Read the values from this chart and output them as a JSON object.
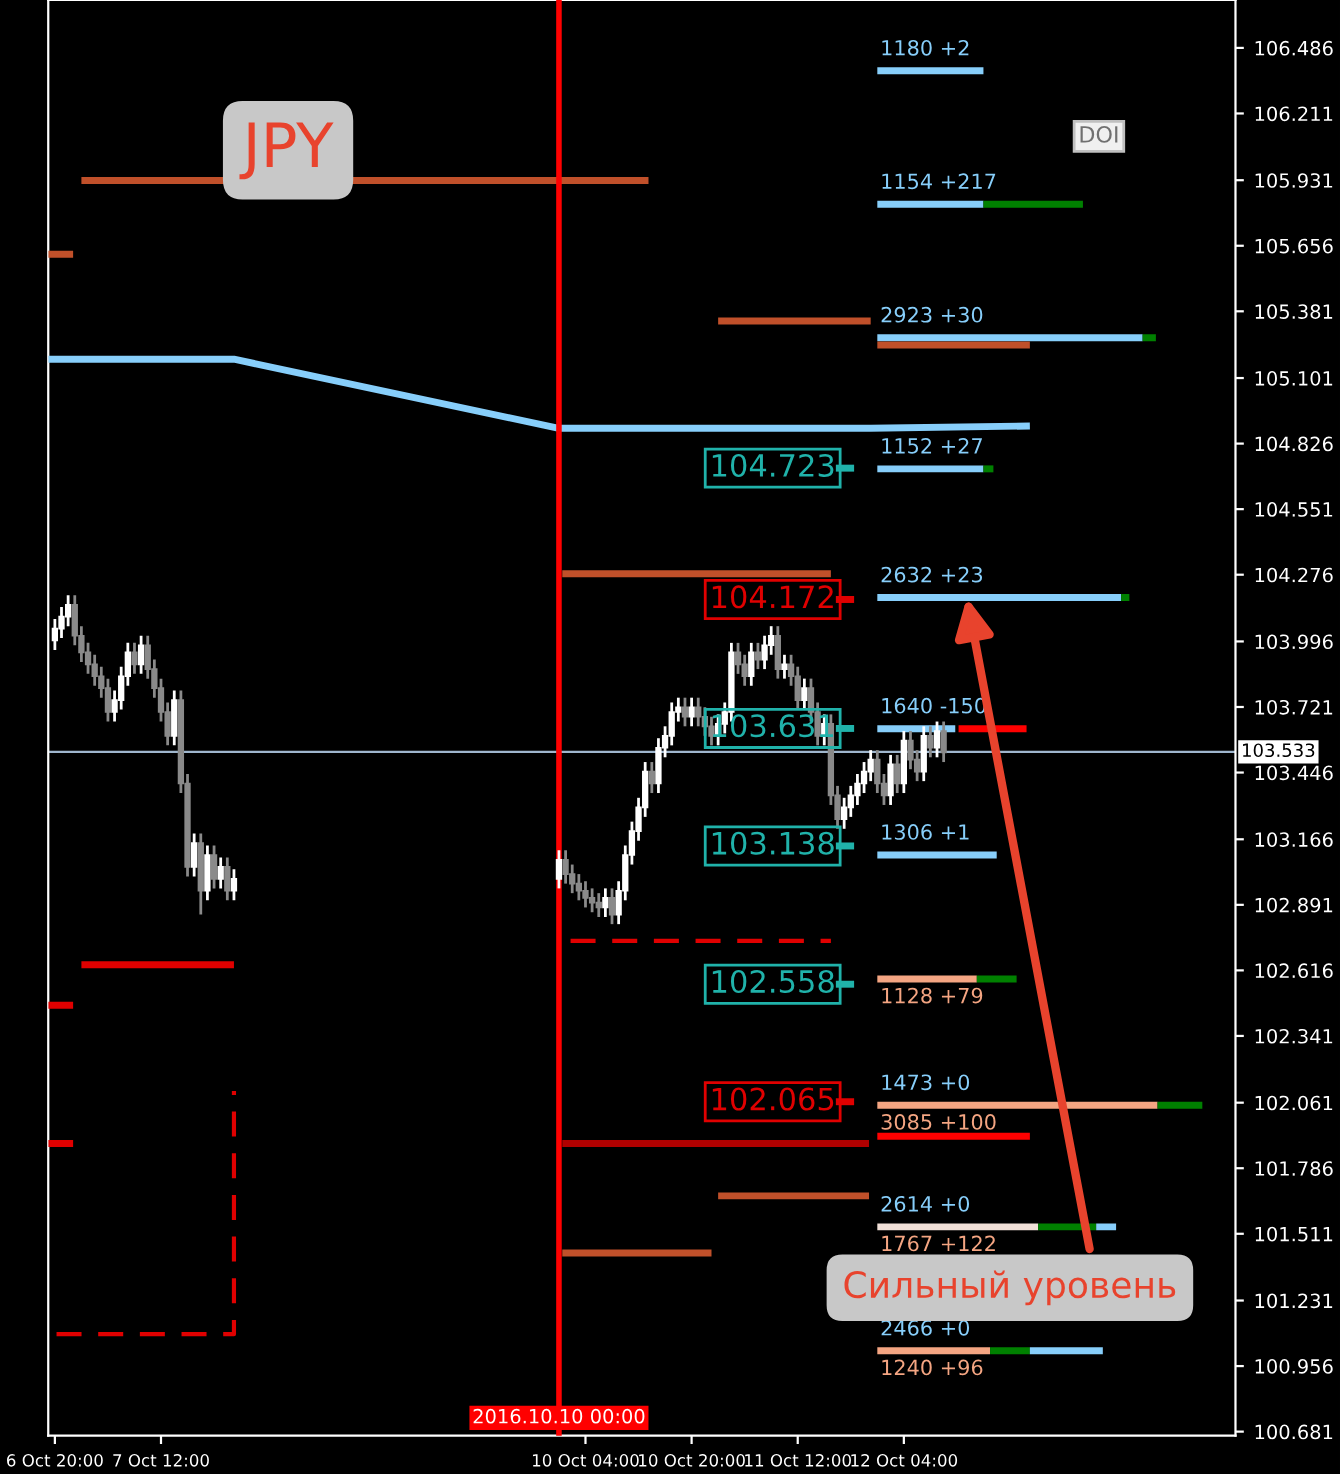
{
  "chart_data": {
    "type": "candlestick",
    "title": "JPY",
    "x": [
      "2016-10-06T20:00",
      "2016-10-06T21:00",
      "2016-10-06T22:00",
      "2016-10-06T23:00",
      "2016-10-07T00:00",
      "2016-10-07T01:00",
      "2016-10-07T02:00",
      "2016-10-07T03:00",
      "2016-10-07T04:00",
      "2016-10-07T05:00",
      "2016-10-07T06:00",
      "2016-10-07T07:00",
      "2016-10-07T08:00",
      "2016-10-07T09:00",
      "2016-10-07T10:00",
      "2016-10-07T11:00",
      "2016-10-07T12:00",
      "2016-10-07T13:00",
      "2016-10-07T14:00",
      "2016-10-07T15:00",
      "2016-10-07T16:00",
      "2016-10-07T17:00",
      "2016-10-07T18:00",
      "2016-10-07T19:00",
      "2016-10-07T20:00",
      "2016-10-07T21:00",
      "2016-10-07T22:00",
      "2016-10-07T23:00",
      "2016-10-10T00:00",
      "2016-10-10T01:00",
      "2016-10-10T02:00",
      "2016-10-10T03:00",
      "2016-10-10T04:00",
      "2016-10-10T05:00",
      "2016-10-10T06:00",
      "2016-10-10T07:00",
      "2016-10-10T08:00",
      "2016-10-10T09:00",
      "2016-10-10T10:00",
      "2016-10-10T11:00",
      "2016-10-10T12:00",
      "2016-10-10T13:00",
      "2016-10-10T14:00",
      "2016-10-10T15:00",
      "2016-10-10T16:00",
      "2016-10-10T17:00",
      "2016-10-10T18:00",
      "2016-10-10T19:00",
      "2016-10-10T20:00",
      "2016-10-10T21:00",
      "2016-10-10T22:00",
      "2016-10-10T23:00",
      "2016-10-11T00:00",
      "2016-10-11T01:00",
      "2016-10-11T02:00",
      "2016-10-11T03:00",
      "2016-10-11T04:00",
      "2016-10-11T05:00",
      "2016-10-11T06:00",
      "2016-10-11T07:00",
      "2016-10-11T08:00",
      "2016-10-11T09:00",
      "2016-10-11T10:00",
      "2016-10-11T11:00",
      "2016-10-11T12:00",
      "2016-10-11T13:00",
      "2016-10-11T14:00",
      "2016-10-11T15:00",
      "2016-10-11T16:00",
      "2016-10-11T17:00",
      "2016-10-11T18:00",
      "2016-10-11T19:00",
      "2016-10-11T20:00",
      "2016-10-11T21:00",
      "2016-10-11T22:00",
      "2016-10-11T23:00",
      "2016-10-12T00:00",
      "2016-10-12T01:00",
      "2016-10-12T02:00",
      "2016-10-12T03:00",
      "2016-10-12T04:00",
      "2016-10-12T05:00",
      "2016-10-12T06:00",
      "2016-10-12T07:00",
      "2016-10-12T08:00",
      "2016-10-12T09:00",
      "2016-10-12T10:00"
    ],
    "ohlc": [
      [
        104.0,
        104.09,
        103.96,
        104.05
      ],
      [
        104.05,
        104.14,
        104.01,
        104.1
      ],
      [
        104.1,
        104.19,
        104.06,
        104.15
      ],
      [
        104.15,
        104.19,
        103.98,
        104.02
      ],
      [
        104.02,
        104.06,
        103.91,
        103.95
      ],
      [
        103.95,
        103.99,
        103.86,
        103.9
      ],
      [
        103.9,
        103.94,
        103.81,
        103.85
      ],
      [
        103.85,
        103.89,
        103.76,
        103.8
      ],
      [
        103.8,
        103.84,
        103.66,
        103.7
      ],
      [
        103.7,
        103.79,
        103.66,
        103.75
      ],
      [
        103.75,
        103.89,
        103.71,
        103.85
      ],
      [
        103.85,
        103.99,
        103.81,
        103.95
      ],
      [
        103.95,
        103.99,
        103.86,
        103.9
      ],
      [
        103.9,
        104.02,
        103.86,
        103.98
      ],
      [
        103.98,
        104.02,
        103.84,
        103.88
      ],
      [
        103.88,
        103.92,
        103.76,
        103.8
      ],
      [
        103.8,
        103.84,
        103.66,
        103.7
      ],
      [
        103.7,
        103.74,
        103.56,
        103.6
      ],
      [
        103.6,
        103.79,
        103.56,
        103.75
      ],
      [
        103.75,
        103.79,
        103.36,
        103.4
      ],
      [
        103.4,
        103.44,
        103.01,
        103.05
      ],
      [
        103.05,
        103.19,
        103.01,
        103.15
      ],
      [
        103.15,
        103.19,
        102.85,
        102.95
      ],
      [
        102.95,
        103.14,
        102.91,
        103.1
      ],
      [
        103.1,
        103.14,
        102.96,
        103.0
      ],
      [
        103.0,
        103.09,
        102.96,
        103.05
      ],
      [
        103.05,
        103.09,
        102.91,
        102.95
      ],
      [
        102.95,
        103.04,
        102.91,
        103.0
      ],
      [
        103.0,
        103.12,
        102.96,
        103.08
      ],
      [
        103.08,
        103.12,
        102.98,
        103.02
      ],
      [
        103.02,
        103.06,
        102.94,
        102.98
      ],
      [
        102.98,
        103.02,
        102.91,
        102.95
      ],
      [
        102.95,
        102.99,
        102.88,
        102.92
      ],
      [
        102.92,
        102.96,
        102.86,
        102.9
      ],
      [
        102.9,
        102.94,
        102.84,
        102.88
      ],
      [
        102.88,
        102.96,
        102.84,
        102.92
      ],
      [
        102.92,
        102.96,
        102.81,
        102.85
      ],
      [
        102.85,
        102.99,
        102.81,
        102.95
      ],
      [
        102.95,
        103.14,
        102.91,
        103.1
      ],
      [
        103.1,
        103.24,
        103.06,
        103.2
      ],
      [
        103.2,
        103.34,
        103.16,
        103.3
      ],
      [
        103.3,
        103.49,
        103.26,
        103.45
      ],
      [
        103.45,
        103.49,
        103.36,
        103.4
      ],
      [
        103.4,
        103.59,
        103.36,
        103.55
      ],
      [
        103.55,
        103.64,
        103.51,
        103.6
      ],
      [
        103.6,
        103.74,
        103.56,
        103.7
      ],
      [
        103.7,
        103.76,
        103.66,
        103.72
      ],
      [
        103.72,
        103.76,
        103.64,
        103.68
      ],
      [
        103.68,
        103.76,
        103.64,
        103.72
      ],
      [
        103.72,
        103.76,
        103.64,
        103.68
      ],
      [
        103.68,
        103.72,
        103.6,
        103.64
      ],
      [
        103.64,
        103.68,
        103.56,
        103.6
      ],
      [
        103.6,
        103.69,
        103.56,
        103.65
      ],
      [
        103.65,
        103.74,
        103.61,
        103.7
      ],
      [
        103.7,
        103.99,
        103.66,
        103.95
      ],
      [
        103.95,
        103.99,
        103.86,
        103.9
      ],
      [
        103.9,
        103.94,
        103.81,
        103.85
      ],
      [
        103.85,
        103.99,
        103.81,
        103.95
      ],
      [
        103.95,
        103.99,
        103.88,
        103.92
      ],
      [
        103.92,
        104.02,
        103.88,
        103.98
      ],
      [
        103.98,
        104.06,
        103.94,
        104.02
      ],
      [
        104.02,
        104.06,
        103.84,
        103.88
      ],
      [
        103.88,
        103.94,
        103.84,
        103.9
      ],
      [
        103.9,
        103.94,
        103.81,
        103.85
      ],
      [
        103.85,
        103.89,
        103.71,
        103.75
      ],
      [
        103.75,
        103.84,
        103.71,
        103.8
      ],
      [
        103.8,
        103.84,
        103.66,
        103.7
      ],
      [
        103.7,
        103.74,
        103.56,
        103.6
      ],
      [
        103.6,
        103.69,
        103.56,
        103.65
      ],
      [
        103.65,
        103.69,
        103.31,
        103.35
      ],
      [
        103.35,
        103.39,
        103.21,
        103.25
      ],
      [
        103.25,
        103.34,
        103.21,
        103.3
      ],
      [
        103.3,
        103.39,
        103.26,
        103.35
      ],
      [
        103.35,
        103.44,
        103.31,
        103.4
      ],
      [
        103.4,
        103.49,
        103.36,
        103.45
      ],
      [
        103.45,
        103.54,
        103.41,
        103.5
      ],
      [
        103.5,
        103.54,
        103.36,
        103.4
      ],
      [
        103.4,
        103.44,
        103.31,
        103.35
      ],
      [
        103.35,
        103.52,
        103.31,
        103.48
      ],
      [
        103.48,
        103.52,
        103.36,
        103.4
      ],
      [
        103.4,
        103.62,
        103.36,
        103.58
      ],
      [
        103.58,
        103.62,
        103.46,
        103.5
      ],
      [
        103.5,
        103.54,
        103.41,
        103.45
      ],
      [
        103.45,
        103.64,
        103.41,
        103.6
      ],
      [
        103.6,
        103.64,
        103.51,
        103.55
      ],
      [
        103.55,
        103.66,
        103.51,
        103.62
      ],
      [
        103.62,
        103.66,
        103.49,
        103.53
      ]
    ],
    "series": [
      {
        "type": "line",
        "color": "#87cefa",
        "x": [
          "2016-10-06T19:00",
          "2016-10-07T23:00",
          "2016-10-10T00:00",
          "2016-10-11T23:00",
          "2016-10-12T23:00"
        ],
        "values": [
          105.18,
          105.18,
          104.89,
          104.89,
          104.9
        ]
      },
      {
        "type": "line",
        "color": "#87cefa",
        "x": [
          "2016-10-12T00:00",
          "2016-10-12T16:00"
        ],
        "values": [
          106.39,
          106.39
        ]
      },
      {
        "type": "line",
        "color": "#87cefa",
        "x": [
          "2016-10-12T00:00",
          "2016-10-12T16:00"
        ],
        "values": [
          105.83,
          105.83
        ]
      },
      {
        "type": "line",
        "color": "#008000",
        "x": [
          "2016-10-12T16:00",
          "2016-10-13T07:00"
        ],
        "values": [
          105.83,
          105.83
        ]
      },
      {
        "type": "line",
        "color": "#87cefa",
        "x": [
          "2016-10-12T00:00",
          "2016-10-13T16:00"
        ],
        "values": [
          105.27,
          105.27
        ]
      },
      {
        "type": "line",
        "color": "#008000",
        "x": [
          "2016-10-13T16:00",
          "2016-10-13T18:00"
        ],
        "values": [
          105.27,
          105.27
        ]
      },
      {
        "type": "line",
        "color": "#c0502a",
        "x": [
          "2016-10-12T00:00",
          "2016-10-12T23:00"
        ],
        "values": [
          105.24,
          105.24
        ]
      },
      {
        "type": "line",
        "color": "#c0502a",
        "x": [
          "2016-10-11T00:00",
          "2016-10-11T23:00"
        ],
        "values": [
          105.34,
          105.34
        ]
      },
      {
        "type": "line",
        "color": "#87cefa",
        "x": [
          "2016-10-12T00:00",
          "2016-10-12T16:00"
        ],
        "values": [
          104.72,
          104.72
        ]
      },
      {
        "type": "line",
        "color": "#008000",
        "x": [
          "2016-10-12T16:00",
          "2016-10-12T17:30"
        ],
        "values": [
          104.72,
          104.72
        ]
      },
      {
        "type": "line",
        "color": "#87cefa",
        "x": [
          "2016-10-12T00:00",
          "2016-10-13T12:45"
        ],
        "values": [
          104.18,
          104.18
        ]
      },
      {
        "type": "line",
        "color": "#008000",
        "x": [
          "2016-10-13T12:45",
          "2016-10-13T14:00"
        ],
        "values": [
          104.18,
          104.18
        ]
      },
      {
        "type": "line",
        "color": "#87cefa",
        "x": [
          "2016-10-12T00:00",
          "2016-10-12T11:45"
        ],
        "values": [
          103.63,
          103.63
        ]
      },
      {
        "type": "line",
        "color": "#ff0000",
        "x": [
          "2016-10-12T12:15",
          "2016-10-12T22:30"
        ],
        "values": [
          103.63,
          103.63
        ]
      },
      {
        "type": "line",
        "color": "#87cefa",
        "x": [
          "2016-10-12T00:00",
          "2016-10-12T18:00"
        ],
        "values": [
          103.1,
          103.1
        ]
      },
      {
        "type": "line",
        "color": "#f4a582",
        "x": [
          "2016-10-12T00:00",
          "2016-10-12T15:00"
        ],
        "values": [
          102.58,
          102.58
        ]
      },
      {
        "type": "line",
        "color": "#008000",
        "x": [
          "2016-10-12T15:00",
          "2016-10-12T21:00"
        ],
        "values": [
          102.58,
          102.58
        ]
      },
      {
        "type": "line",
        "color": "#f4a582",
        "x": [
          "2016-10-12T00:00",
          "2016-10-13T18:15"
        ],
        "values": [
          102.05,
          102.05
        ]
      },
      {
        "type": "line",
        "color": "#008000",
        "x": [
          "2016-10-13T18:15",
          "2016-10-14T01:00"
        ],
        "values": [
          102.05,
          102.05
        ]
      },
      {
        "type": "line",
        "color": "#ff0000",
        "x": [
          "2016-10-12T00:00",
          "2016-10-12T23:00"
        ],
        "values": [
          101.92,
          101.92
        ]
      },
      {
        "type": "line",
        "color": "#f0e0d8",
        "x": [
          "2016-10-12T00:00",
          "2016-10-13T00:15"
        ],
        "values": [
          101.54,
          101.54
        ]
      },
      {
        "type": "line",
        "color": "#008000",
        "x": [
          "2016-10-13T00:15",
          "2016-10-13T09:00"
        ],
        "values": [
          101.54,
          101.54
        ]
      },
      {
        "type": "line",
        "color": "#87cefa",
        "x": [
          "2016-10-13T09:00",
          "2016-10-13T12:00"
        ],
        "values": [
          101.54,
          101.54
        ]
      },
      {
        "type": "line",
        "color": "#f4a582",
        "x": [
          "2016-10-12T00:00",
          "2016-10-12T17:00"
        ],
        "values": [
          101.02,
          101.02
        ]
      },
      {
        "type": "line",
        "color": "#008000",
        "x": [
          "2016-10-12T17:00",
          "2016-10-12T23:00"
        ],
        "values": [
          101.02,
          101.02
        ]
      },
      {
        "type": "line",
        "color": "#87cefa",
        "x": [
          "2016-10-12T23:00",
          "2016-10-13T10:00"
        ],
        "values": [
          101.02,
          101.02
        ]
      },
      {
        "type": "line",
        "color": "#c0502a",
        "x": [
          "2016-10-07T00:00",
          "2016-10-10T13:30"
        ],
        "values": [
          105.93,
          105.93
        ]
      },
      {
        "type": "line",
        "color": "#c0502a",
        "x": [
          "2016-10-06T19:00",
          "2016-10-06T22:45"
        ],
        "values": [
          105.62,
          105.62
        ]
      },
      {
        "type": "line",
        "color": "#c0502a",
        "x": [
          "2016-10-10T00:30",
          "2016-10-11T17:00"
        ],
        "values": [
          104.28,
          104.28
        ]
      },
      {
        "type": "line",
        "color": "#e00000",
        "line_style": "dashed",
        "x": [
          "2016-10-10T01:45",
          "2016-10-11T17:00"
        ],
        "values": [
          102.74,
          102.74
        ]
      },
      {
        "type": "line",
        "color": "#e00000",
        "x": [
          "2016-10-07T00:00",
          "2016-10-07T23:00"
        ],
        "values": [
          102.64,
          102.64
        ]
      },
      {
        "type": "line",
        "color": "#e00000",
        "x": [
          "2016-10-06T19:00",
          "2016-10-06T22:45"
        ],
        "values": [
          102.47,
          102.47
        ]
      },
      {
        "type": "line",
        "color": "#b00000",
        "x": [
          "2016-10-10T00:30",
          "2016-10-11T22:45"
        ],
        "values": [
          101.89,
          101.89
        ]
      },
      {
        "type": "line",
        "color": "#e00000",
        "x": [
          "2016-10-06T19:00",
          "2016-10-06T22:45"
        ],
        "values": [
          101.89,
          101.89
        ]
      },
      {
        "type": "line",
        "color": "#c0502a",
        "x": [
          "2016-10-11T00:00",
          "2016-10-11T22:45"
        ],
        "values": [
          101.67,
          101.67
        ]
      },
      {
        "type": "line",
        "color": "#c0502a",
        "x": [
          "2016-10-10T00:30",
          "2016-10-10T23:00"
        ],
        "values": [
          101.43,
          101.43
        ]
      },
      {
        "type": "line",
        "color": "#e00000",
        "line_style": "dashed",
        "x": [
          "2016-10-06T20:15",
          "2016-10-07T23:00",
          "2016-10-07T23:00"
        ],
        "values": [
          101.09,
          101.09,
          102.11
        ]
      },
      {
        "type": "line",
        "color": "#20b2aa",
        "x": [
          "2016-10-11T17:45",
          "2016-10-11T20:30"
        ],
        "values": [
          104.723,
          104.723
        ]
      },
      {
        "type": "line",
        "color": "#e00000",
        "x": [
          "2016-10-11T17:45",
          "2016-10-11T20:30"
        ],
        "values": [
          104.172,
          104.172
        ]
      },
      {
        "type": "line",
        "color": "#20b2aa",
        "x": [
          "2016-10-11T17:45",
          "2016-10-11T20:30"
        ],
        "values": [
          103.631,
          103.631
        ]
      },
      {
        "type": "line",
        "color": "#20b2aa",
        "x": [
          "2016-10-11T17:45",
          "2016-10-11T20:30"
        ],
        "values": [
          103.138,
          103.138
        ]
      },
      {
        "type": "line",
        "color": "#20b2aa",
        "x": [
          "2016-10-11T17:45",
          "2016-10-11T20:30"
        ],
        "values": [
          102.558,
          102.558
        ]
      },
      {
        "type": "line",
        "color": "#e00000",
        "x": [
          "2016-10-11T17:45",
          "2016-10-11T20:30"
        ],
        "values": [
          102.065,
          102.065
        ]
      }
    ],
    "annotations": [
      {
        "text": "104.723",
        "x": "2016-10-11T17:45",
        "y": 104.723
      },
      {
        "text": "104.172",
        "x": "2016-10-11T17:45",
        "y": 104.172
      },
      {
        "text": "103.631",
        "x": "2016-10-11T17:45",
        "y": 103.631
      },
      {
        "text": "103.138",
        "x": "2016-10-11T17:45",
        "y": 103.138
      },
      {
        "text": "102.558",
        "x": "2016-10-11T17:45",
        "y": 102.558
      },
      {
        "text": "102.065",
        "x": "2016-10-11T17:45",
        "y": 102.065
      },
      {
        "text": "1180 +2",
        "x": "2016-10-12T00:00",
        "y": 106.39
      },
      {
        "text": "1154 +217",
        "x": "2016-10-12T00:00",
        "y": 105.83
      },
      {
        "text": "2923 +30",
        "x": "2016-10-12T00:00",
        "y": 105.27
      },
      {
        "text": "1152 +27",
        "x": "2016-10-12T00:00",
        "y": 104.72
      },
      {
        "text": "2632 +23",
        "x": "2016-10-12T00:00",
        "y": 104.18
      },
      {
        "text": "1640 -150",
        "x": "2016-10-12T00:00",
        "y": 103.63
      },
      {
        "text": "1306 +1",
        "x": "2016-10-12T00:00",
        "y": 103.1
      },
      {
        "text": "1128 +79",
        "x": "2016-10-12T00:00",
        "y": 102.58
      },
      {
        "text": "1473 +0",
        "x": "2016-10-12T00:00",
        "y": 102.05
      },
      {
        "text": "3085 +100",
        "x": "2016-10-12T00:00",
        "y": 102.05
      },
      {
        "text": "2614 +0",
        "x": "2016-10-12T00:00",
        "y": 101.54
      },
      {
        "text": "1767 +122",
        "x": "2016-10-12T00:00",
        "y": 101.54
      },
      {
        "text": "2466 +0",
        "x": "2016-10-12T00:00",
        "y": 101.02
      },
      {
        "text": "1240 +96",
        "x": "2016-10-12T00:00",
        "y": 101.02
      },
      {
        "text": "Сильный уровень",
        "x": "2016-10-12T13:30",
        "y": 104.18
      },
      "DOI"
    ],
    "ref_lines": [
      {
        "axis": "y",
        "value": 103.533,
        "label": "103.533",
        "color": "#9fb6cd"
      },
      {
        "axis": "x",
        "value": "2016-10-10T00:00",
        "label": "2016.10.10 00:00",
        "color": "#ff0000"
      }
    ],
    "xlim": [
      "2016-10-06T19:00",
      "2016-10-14T06:00"
    ],
    "xticks": [
      {
        "value": "2016-10-06T20:00",
        "label": "6 Oct 20:00"
      },
      {
        "value": "2016-10-07T12:00",
        "label": "7 Oct 12:00"
      },
      {
        "value": "2016-10-10T04:00",
        "label": "10 Oct 04:00"
      },
      {
        "value": "2016-10-10T20:00",
        "label": "10 Oct 20:00"
      },
      {
        "value": "2016-10-11T12:00",
        "label": "11 Oct 12:00"
      },
      {
        "value": "2016-10-12T04:00",
        "label": "12 Oct 04:00"
      }
    ],
    "ylim": [
      100.664,
      106.687
    ],
    "yticks": [
      100.681,
      100.956,
      101.231,
      101.511,
      101.786,
      102.061,
      102.341,
      102.616,
      102.891,
      103.166,
      103.446,
      103.721,
      103.996,
      104.276,
      104.551,
      104.826,
      105.101,
      105.381,
      105.656,
      105.931,
      106.211,
      106.486
    ],
    "grid": false,
    "legend": false
  }
}
